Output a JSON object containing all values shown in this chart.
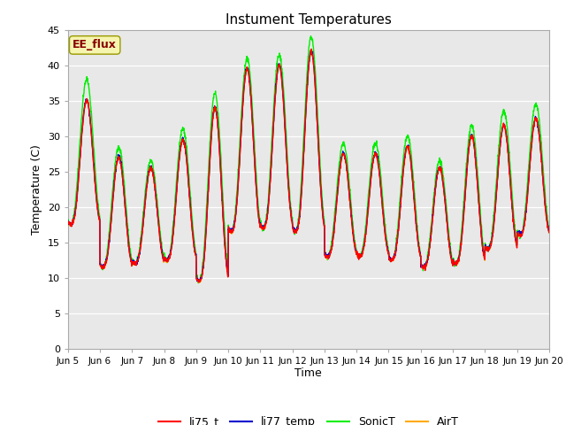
{
  "title": "Instument Temperatures",
  "xlabel": "Time",
  "ylabel": "Temperature (C)",
  "ylim": [
    0,
    45
  ],
  "yticks": [
    0,
    5,
    10,
    15,
    20,
    25,
    30,
    35,
    40,
    45
  ],
  "annotation_text": "EE_flux",
  "series_colors": {
    "li75_t": "#ff0000",
    "li77_temp": "#0000cc",
    "SonicT": "#00ee00",
    "AirT": "#ffaa00"
  },
  "bg_color": "#e8e8e8",
  "linewidth": 1.0,
  "day_mins": [
    17.5,
    11.5,
    12.0,
    12.5,
    9.5,
    16.5,
    17.0,
    16.5,
    13.0,
    13.0,
    12.5,
    11.5,
    12.0,
    14.0,
    16.0
  ],
  "day_maxs": [
    35.0,
    27.0,
    25.5,
    29.5,
    34.0,
    39.5,
    40.0,
    42.0,
    27.5,
    27.5,
    28.5,
    25.5,
    30.0,
    31.5,
    32.5
  ],
  "sonic_boost": [
    3.0,
    1.5,
    1.0,
    1.5,
    2.0,
    1.5,
    1.5,
    2.0,
    1.5,
    1.5,
    1.5,
    1.0,
    1.5,
    2.0,
    2.0
  ],
  "figsize": [
    6.4,
    4.8
  ],
  "dpi": 100
}
